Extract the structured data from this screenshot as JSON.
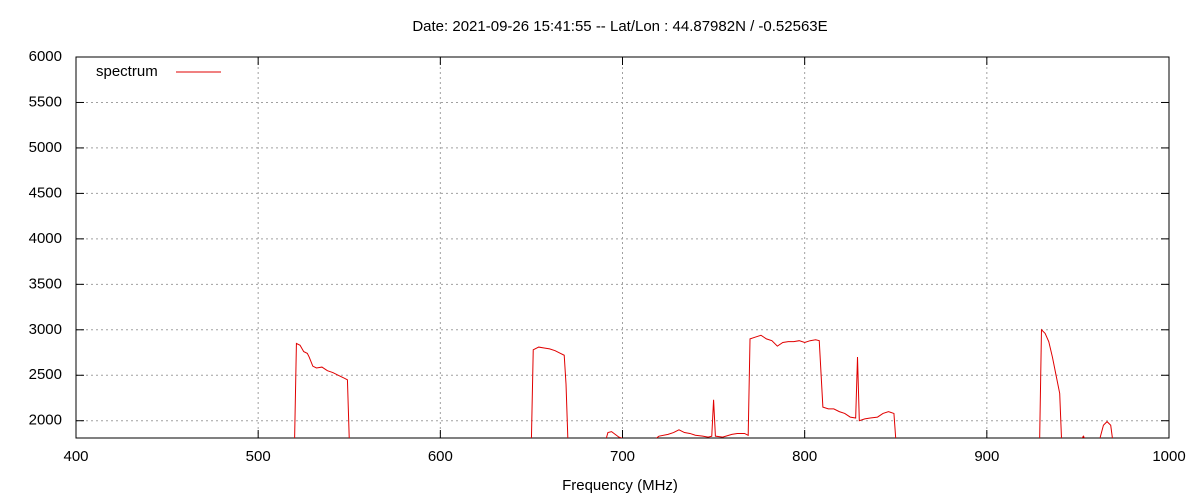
{
  "chart_data": {
    "type": "line",
    "title": "Date: 2021-09-26 15:41:55  --  Lat/Lon : 44.87982N / -0.52563E",
    "x_label": "Frequency (MHz)",
    "x": [
      520,
      521,
      523,
      525,
      527,
      528,
      530,
      532,
      535,
      538,
      541,
      544,
      547,
      549,
      550,
      551,
      650,
      651,
      654,
      657,
      660,
      663,
      666,
      668,
      669,
      670,
      671,
      691,
      692,
      694,
      696,
      698,
      701,
      702,
      718,
      720,
      725,
      728,
      731,
      734,
      737,
      740,
      744,
      747,
      749,
      750,
      751,
      755,
      760,
      763,
      767,
      769,
      770,
      773,
      776,
      779,
      782,
      785,
      788,
      791,
      794,
      797,
      800,
      803,
      806,
      808,
      810,
      813,
      816,
      819,
      822,
      825,
      828,
      829,
      830,
      833,
      836,
      840,
      843,
      846,
      849,
      850,
      851,
      929,
      930,
      932,
      934,
      936,
      938,
      940,
      941,
      942,
      952,
      953,
      954,
      955,
      962,
      964,
      966,
      968,
      969
    ],
    "series": [
      {
        "name": "spectrum",
        "color": "#e00000",
        "values": [
          1800,
          2850,
          2830,
          2760,
          2740,
          2700,
          2600,
          2580,
          2590,
          2550,
          2530,
          2500,
          2470,
          2450,
          1800,
          null,
          1800,
          2780,
          2810,
          2800,
          2790,
          2770,
          2740,
          2720,
          2400,
          1800,
          null,
          1800,
          1870,
          1880,
          1850,
          1820,
          1800,
          null,
          1800,
          1830,
          1850,
          1870,
          1900,
          1870,
          1860,
          1840,
          1830,
          1820,
          1830,
          2230,
          1830,
          1820,
          1850,
          1860,
          1860,
          1840,
          2900,
          2920,
          2940,
          2900,
          2880,
          2820,
          2860,
          2870,
          2870,
          2880,
          2860,
          2880,
          2890,
          2880,
          2150,
          2130,
          2130,
          2100,
          2080,
          2040,
          2030,
          2700,
          2000,
          2020,
          2030,
          2040,
          2080,
          2100,
          2080,
          1800,
          null,
          1800,
          3000,
          2960,
          2870,
          2700,
          2500,
          2300,
          1800,
          null,
          1800,
          1830,
          1800,
          null,
          1800,
          1950,
          1990,
          1950,
          1800
        ]
      }
    ],
    "xlim": [
      400,
      1000
    ],
    "xticks": [
      400,
      500,
      600,
      700,
      800,
      900,
      1000
    ],
    "ylim": [
      1810,
      6000
    ],
    "yticks": [
      2000,
      2500,
      3000,
      3500,
      4000,
      4500,
      5000,
      5500,
      6000
    ],
    "grid": true,
    "legend": "top-left"
  }
}
